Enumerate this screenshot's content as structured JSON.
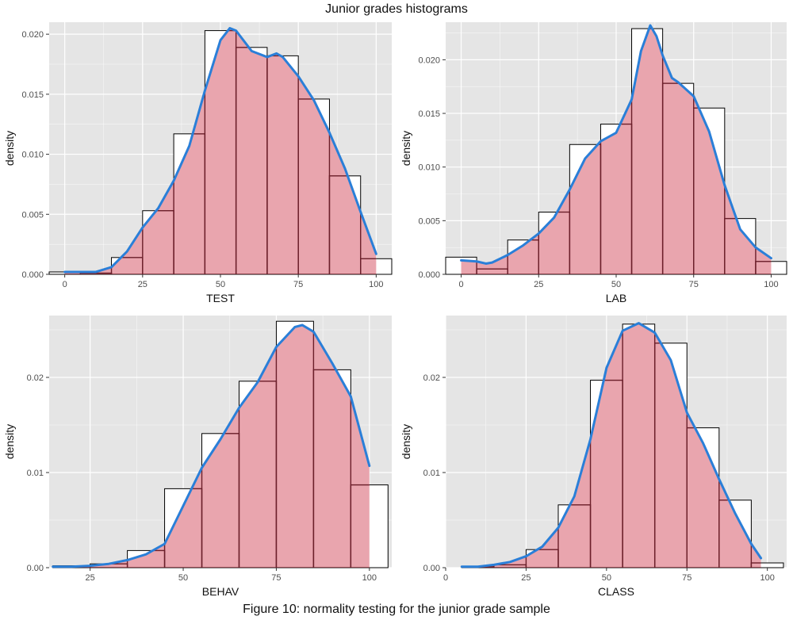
{
  "title": "Junior grades histograms",
  "caption": "Figure 10: normality testing for the junior grade sample",
  "colors": {
    "panel_bg": "#E5E5E5",
    "grid": "#FFFFFF",
    "bar_outline": "#000000",
    "fill": "#E8A0AA",
    "fill_outline": "#6B1F2A",
    "density_line": "#2A7FD8"
  },
  "chart_data": [
    {
      "type": "histogram-density",
      "xlabel": "TEST",
      "ylabel": "density",
      "xlim": [
        -5,
        105
      ],
      "ylim": [
        0,
        0.021
      ],
      "xticks": [
        0,
        25,
        50,
        75,
        100
      ],
      "xtick_labels": [
        "0",
        "25",
        "50",
        "75",
        "100"
      ],
      "yticks": [
        0,
        0.005,
        0.01,
        0.015,
        0.02
      ],
      "ytick_labels": [
        "0.000",
        "0.005",
        "0.010",
        "0.015",
        "0.020"
      ],
      "bin_edges": [
        -5,
        5,
        15,
        25,
        35,
        45,
        55,
        65,
        75,
        85,
        95,
        105
      ],
      "bin_density": [
        0.0002,
        0.0001,
        0.0014,
        0.0053,
        0.0117,
        0.0203,
        0.0189,
        0.0182,
        0.0146,
        0.0082,
        0.0013
      ],
      "density_curve": {
        "x": [
          0,
          5,
          10,
          15,
          20,
          25,
          30,
          35,
          40,
          45,
          50,
          53,
          55,
          60,
          65,
          68,
          70,
          75,
          80,
          85,
          90,
          95,
          100
        ],
        "y": [
          0.0002,
          0.0002,
          0.0002,
          0.0006,
          0.0019,
          0.0039,
          0.0055,
          0.0078,
          0.0107,
          0.0153,
          0.0195,
          0.0205,
          0.0203,
          0.0186,
          0.0181,
          0.0184,
          0.0181,
          0.0165,
          0.0145,
          0.0118,
          0.0088,
          0.0052,
          0.0017
        ]
      }
    },
    {
      "type": "histogram-density",
      "xlabel": "LAB",
      "ylabel": "density",
      "xlim": [
        -5,
        105
      ],
      "ylim": [
        0,
        0.0235
      ],
      "xticks": [
        0,
        25,
        50,
        75,
        100
      ],
      "xtick_labels": [
        "0",
        "25",
        "50",
        "75",
        "100"
      ],
      "yticks": [
        0,
        0.005,
        0.01,
        0.015,
        0.02
      ],
      "ytick_labels": [
        "0.000",
        "0.005",
        "0.010",
        "0.015",
        "0.020"
      ],
      "bin_edges": [
        -5,
        5,
        15,
        25,
        35,
        45,
        55,
        65,
        75,
        85,
        95,
        105
      ],
      "bin_density": [
        0.0016,
        0.0005,
        0.0032,
        0.0058,
        0.0121,
        0.014,
        0.0229,
        0.0178,
        0.0155,
        0.0052,
        0.0012
      ],
      "density_curve": {
        "x": [
          0,
          5,
          8,
          10,
          15,
          20,
          25,
          30,
          35,
          40,
          45,
          50,
          55,
          58,
          61,
          63,
          65,
          68,
          70,
          75,
          80,
          85,
          90,
          95,
          100
        ],
        "y": [
          0.0013,
          0.0012,
          0.001,
          0.0011,
          0.0018,
          0.0027,
          0.0038,
          0.0053,
          0.0079,
          0.0108,
          0.0124,
          0.0132,
          0.0163,
          0.0208,
          0.0232,
          0.0222,
          0.0204,
          0.0183,
          0.0179,
          0.0166,
          0.0133,
          0.0083,
          0.0042,
          0.0025,
          0.0015
        ]
      }
    },
    {
      "type": "histogram-density",
      "xlabel": "BEHAV",
      "ylabel": "density",
      "xlim": [
        14,
        106
      ],
      "ylim": [
        0,
        0.0265
      ],
      "xticks": [
        25,
        50,
        75,
        100
      ],
      "xtick_labels": [
        "25",
        "50",
        "75",
        "100"
      ],
      "yticks": [
        0,
        0.01,
        0.02
      ],
      "ytick_labels": [
        "0.00",
        "0.01",
        "0.02"
      ],
      "bin_edges": [
        15,
        25,
        35,
        45,
        55,
        65,
        75,
        85,
        95,
        105
      ],
      "bin_density": [
        0.0002,
        0.0004,
        0.0018,
        0.0083,
        0.0141,
        0.0196,
        0.0259,
        0.0208,
        0.0087
      ],
      "density_curve": {
        "x": [
          15,
          20,
          25,
          30,
          35,
          40,
          45,
          50,
          55,
          60,
          65,
          70,
          75,
          80,
          82,
          85,
          90,
          95,
          100
        ],
        "y": [
          0.0001,
          0.0001,
          0.0002,
          0.0004,
          0.0008,
          0.0014,
          0.0025,
          0.0065,
          0.0105,
          0.0135,
          0.0168,
          0.0195,
          0.0232,
          0.0253,
          0.0255,
          0.0248,
          0.0215,
          0.018,
          0.0107
        ]
      }
    },
    {
      "type": "histogram-density",
      "xlabel": "CLASS",
      "ylabel": "density",
      "xlim": [
        0,
        106
      ],
      "ylim": [
        0,
        0.0265
      ],
      "xticks": [
        0,
        25,
        50,
        75,
        100
      ],
      "xtick_labels": [
        "0",
        "25",
        "50",
        "75",
        "100"
      ],
      "yticks": [
        0,
        0.01,
        0.02
      ],
      "ytick_labels": [
        "0.00",
        "0.01",
        "0.02"
      ],
      "bin_edges": [
        5,
        15,
        25,
        35,
        45,
        55,
        65,
        75,
        85,
        95,
        105
      ],
      "bin_density": [
        0.0001,
        0.0003,
        0.0019,
        0.0066,
        0.0197,
        0.0256,
        0.0236,
        0.0147,
        0.0071,
        0.0005
      ],
      "density_curve": {
        "x": [
          5,
          10,
          15,
          20,
          25,
          30,
          35,
          40,
          45,
          50,
          55,
          60,
          65,
          70,
          75,
          80,
          85,
          90,
          95,
          98
        ],
        "y": [
          0.0001,
          0.0001,
          0.0003,
          0.0006,
          0.0012,
          0.0022,
          0.0042,
          0.0075,
          0.0135,
          0.021,
          0.0249,
          0.0257,
          0.0247,
          0.0218,
          0.0163,
          0.0131,
          0.0093,
          0.0057,
          0.0025,
          0.001
        ]
      }
    }
  ]
}
